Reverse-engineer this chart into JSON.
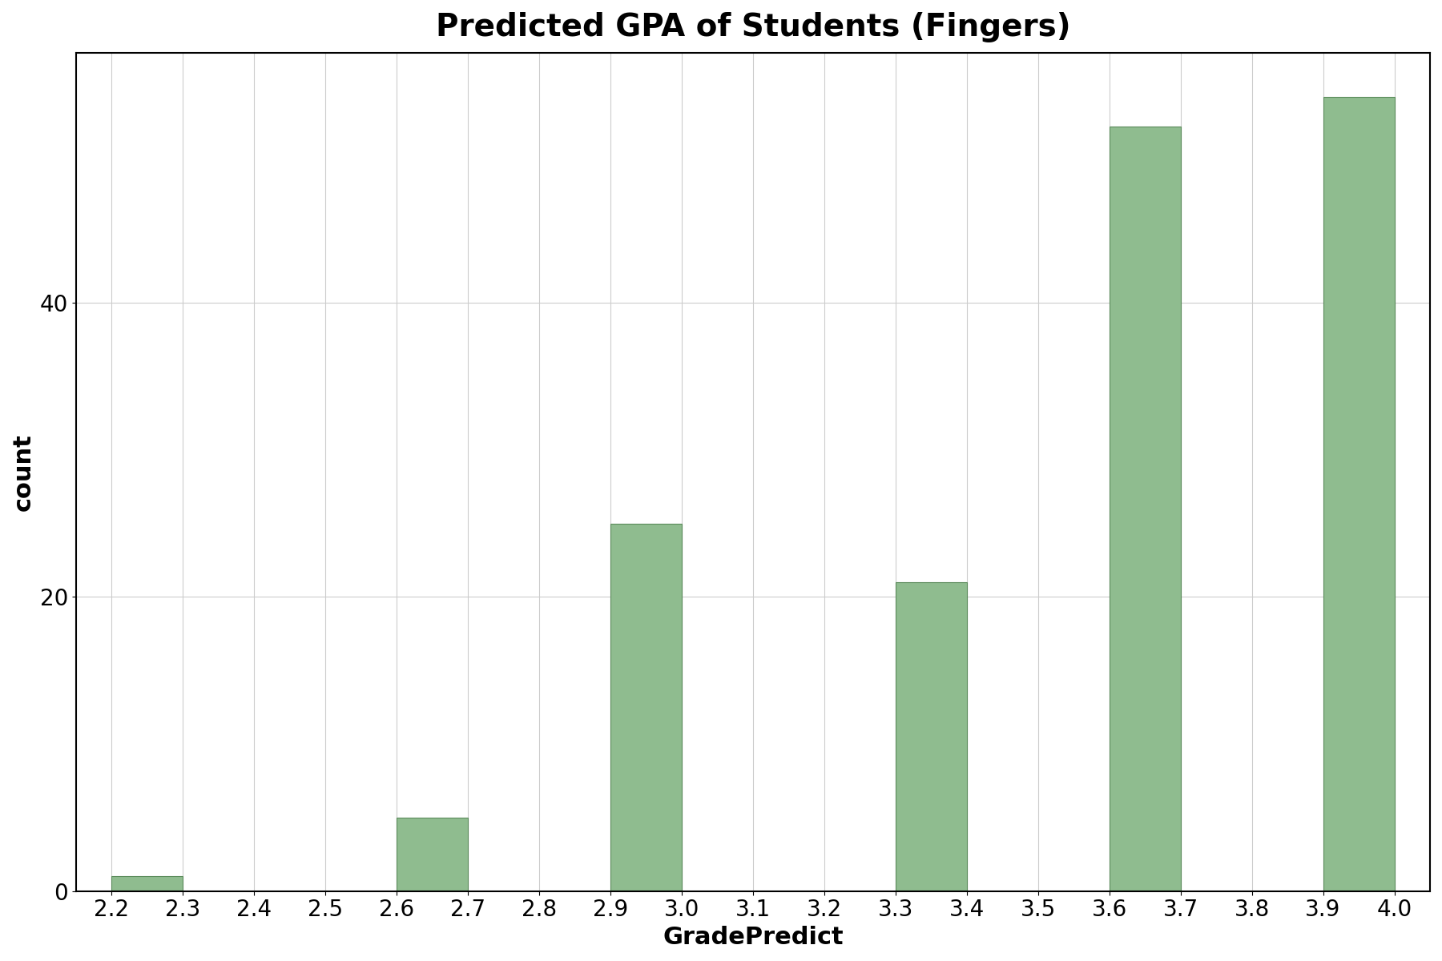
{
  "title": "Predicted GPA of Students (Fingers)",
  "xlabel": "GradePredict",
  "ylabel": "count",
  "bar_color": "#8FBC8F",
  "bar_edge_color": "#5a8a5a",
  "background_color": "#ffffff",
  "grid_color": "#cccccc",
  "xlim": [
    2.15,
    4.05
  ],
  "ylim": [
    0,
    57
  ],
  "xtick_values": [
    2.2,
    2.3,
    2.4,
    2.5,
    2.6,
    2.7,
    2.8,
    2.9,
    3.0,
    3.1,
    3.2,
    3.3,
    3.4,
    3.5,
    3.6,
    3.7,
    3.8,
    3.9,
    4.0
  ],
  "xtick_labels": [
    "2.2",
    "2.3",
    "2.4",
    "2.5",
    "2.6",
    "2.7",
    "2.8",
    "2.9",
    "3.0",
    "3.1",
    "3.2",
    "3.3",
    "3.4",
    "3.5",
    "3.6",
    "3.7",
    "3.8",
    "3.9",
    "4.0"
  ],
  "ytick_values": [
    0,
    20,
    40
  ],
  "bar_lefts": [
    2.2,
    2.6,
    2.9,
    3.3,
    3.6,
    3.9
  ],
  "bar_heights": [
    1,
    5,
    25,
    21,
    52,
    54
  ],
  "bar_width": 0.1,
  "title_fontsize": 28,
  "axis_label_fontsize": 22,
  "tick_fontsize": 20
}
